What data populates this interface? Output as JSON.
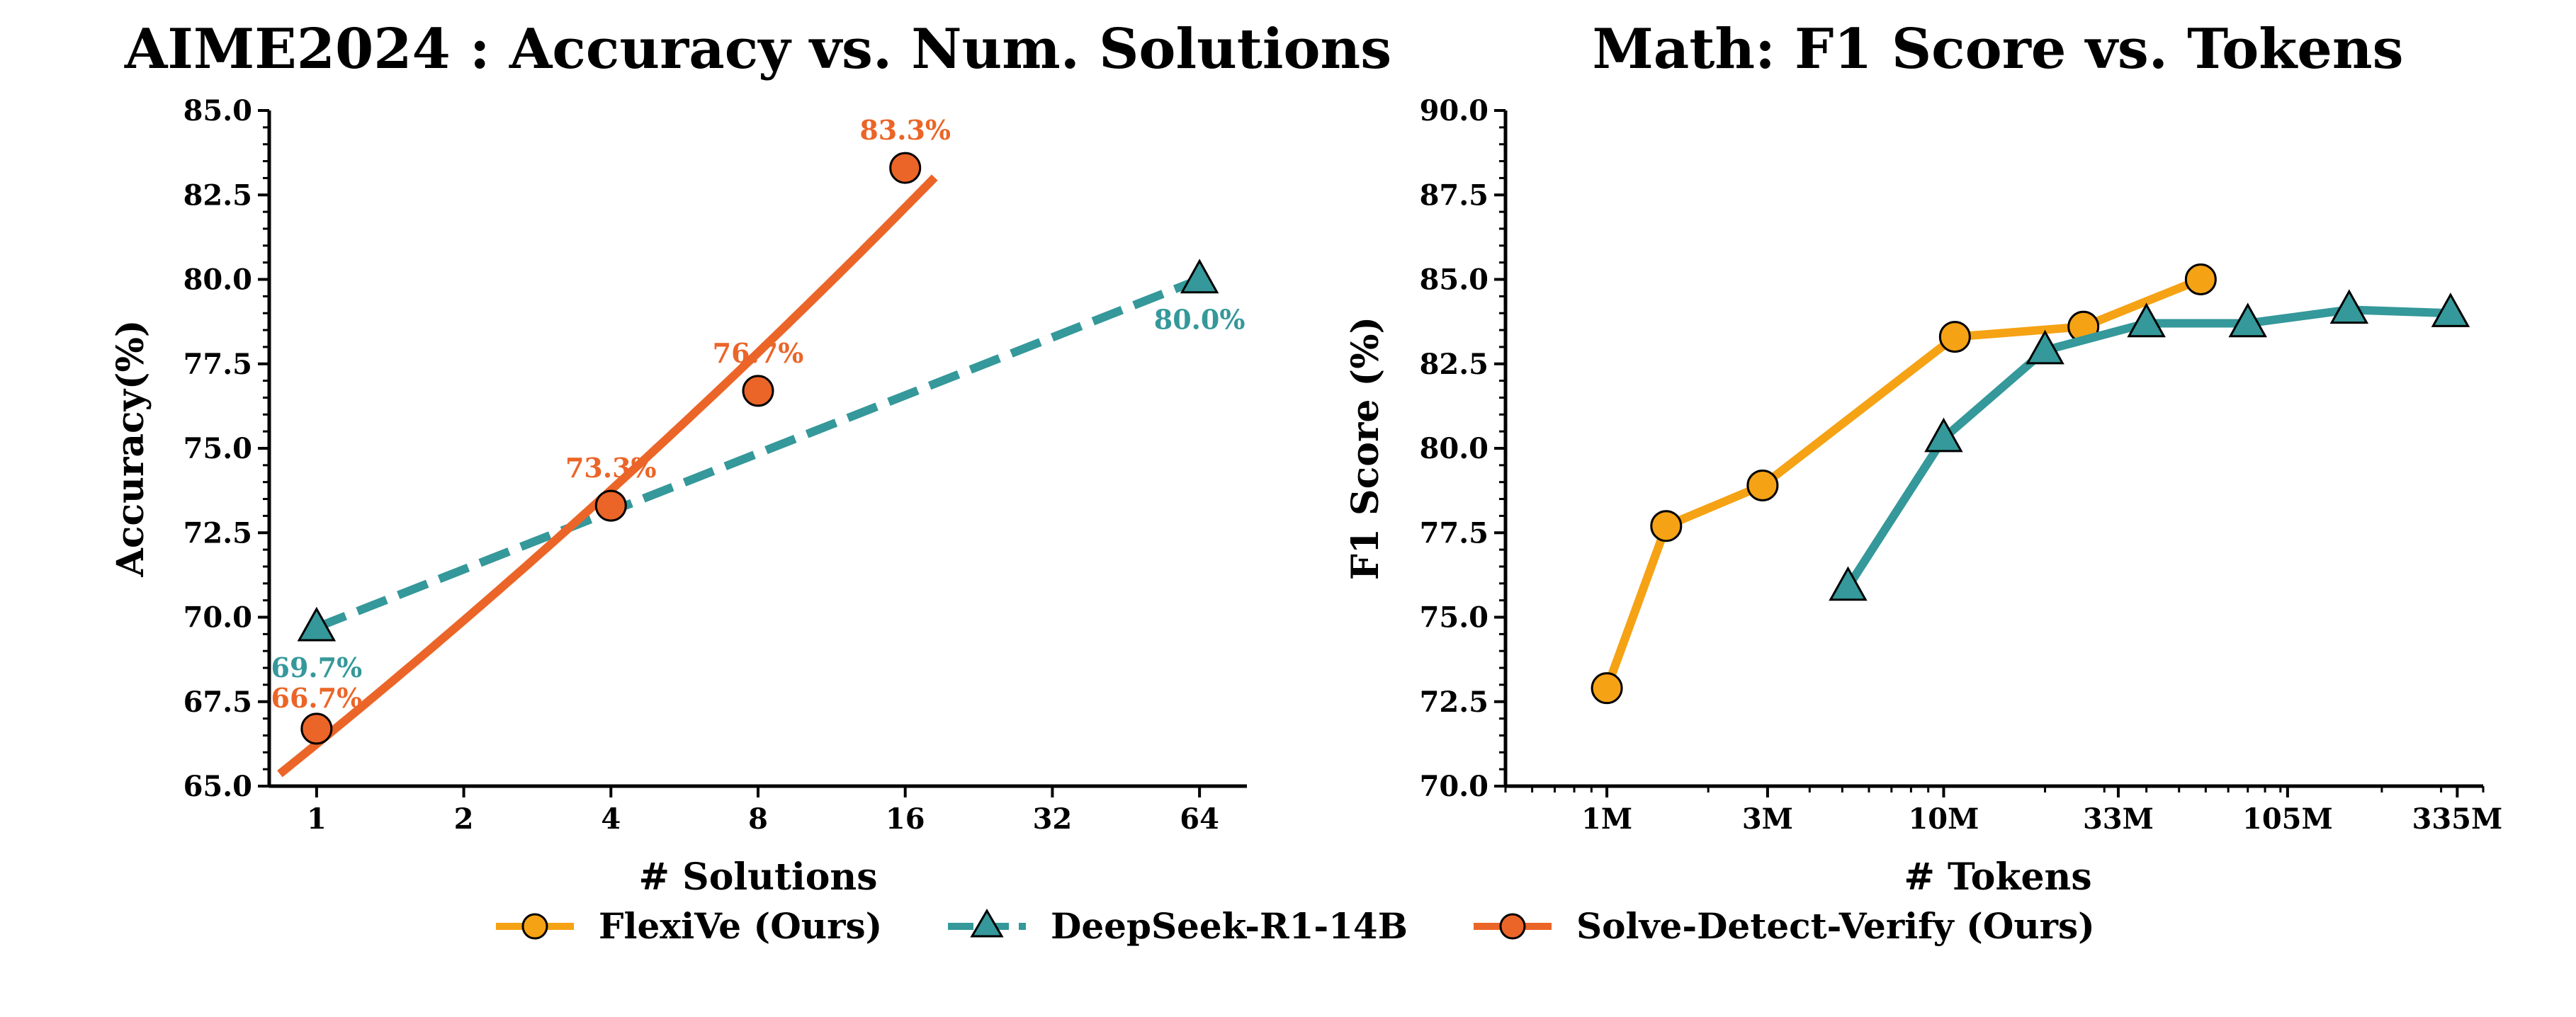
{
  "colors": {
    "flexive": "#f5a214",
    "deepseek": "#35989a",
    "sdv": "#eb6528",
    "axis": "#000000"
  },
  "legend": {
    "items": [
      {
        "name": "FlexiVe (Ours)",
        "marker": "circle",
        "color": "#f5a214",
        "dash": false
      },
      {
        "name": "DeepSeek-R1-14B",
        "marker": "triangle",
        "color": "#35989a",
        "dash": true
      },
      {
        "name": "Solve-Detect-Verify (Ours)",
        "marker": "circle",
        "color": "#eb6528",
        "dash": false
      }
    ]
  },
  "chart_data": [
    {
      "type": "line",
      "title": "AIME2024 : Accuracy vs. Num. Solutions",
      "xlabel": "# Solutions",
      "ylabel": "Accuracy(%)",
      "xscale": "log2",
      "xlim": [
        0.8,
        80
      ],
      "ylim": [
        65.0,
        85.0
      ],
      "xticks": [
        1,
        2,
        4,
        8,
        16,
        32,
        64
      ],
      "xtick_labels": [
        "1",
        "2",
        "4",
        "8",
        "16",
        "32",
        "64"
      ],
      "yticks": [
        65.0,
        67.5,
        70.0,
        72.5,
        75.0,
        77.5,
        80.0,
        82.5,
        85.0
      ],
      "ytick_labels": [
        "65.0",
        "67.5",
        "70.0",
        "72.5",
        "75.0",
        "77.5",
        "80.0",
        "82.5",
        "85.0"
      ],
      "grid": false,
      "series": [
        {
          "name": "DeepSeek-R1-14B",
          "color": "#35989a",
          "marker": "triangle",
          "linestyle": "dashed",
          "x": [
            1,
            64
          ],
          "y": [
            69.7,
            80.0
          ],
          "labels": [
            "69.7%",
            "80.0%"
          ]
        },
        {
          "name": "Solve-Detect-Verify (Ours)",
          "color": "#eb6528",
          "marker": "circle",
          "linestyle": "solid-smooth",
          "x": [
            1,
            4,
            8,
            16
          ],
          "y": [
            66.7,
            73.3,
            76.7,
            83.3
          ],
          "labels": [
            "66.7%",
            "73.3%",
            "76.7%",
            "83.3%"
          ]
        }
      ]
    },
    {
      "type": "line",
      "title": "Math: F1 Score vs. Tokens",
      "xlabel": "# Tokens",
      "ylabel": "F1 Score (%)",
      "xscale": "log",
      "xlim": [
        500000,
        400000000
      ],
      "ylim": [
        70.0,
        90.0
      ],
      "xticks": [
        1000000,
        3000000,
        10000000,
        33000000,
        105000000,
        335000000
      ],
      "xtick_labels": [
        "1M",
        "3M",
        "10M",
        "33M",
        "105M",
        "335M"
      ],
      "yticks": [
        70.0,
        72.5,
        75.0,
        77.5,
        80.0,
        82.5,
        85.0,
        87.5,
        90.0
      ],
      "ytick_labels": [
        "70.0",
        "72.5",
        "75.0",
        "77.5",
        "80.0",
        "82.5",
        "85.0",
        "87.5",
        "90.0"
      ],
      "grid": false,
      "series": [
        {
          "name": "FlexiVe (Ours)",
          "color": "#f5a214",
          "marker": "circle",
          "linestyle": "solid",
          "x": [
            1000000,
            1500000,
            2900000,
            10800000,
            26000000,
            58000000
          ],
          "y": [
            72.9,
            77.7,
            78.9,
            83.3,
            83.6,
            85.0
          ]
        },
        {
          "name": "DeepSeek-R1-14B",
          "color": "#35989a",
          "marker": "triangle",
          "linestyle": "solid",
          "x": [
            5200000,
            10000000,
            20000000,
            40000000,
            80000000,
            160000000,
            320000000
          ],
          "y": [
            75.9,
            80.3,
            82.9,
            83.7,
            83.7,
            84.1,
            84.0
          ]
        }
      ]
    }
  ]
}
